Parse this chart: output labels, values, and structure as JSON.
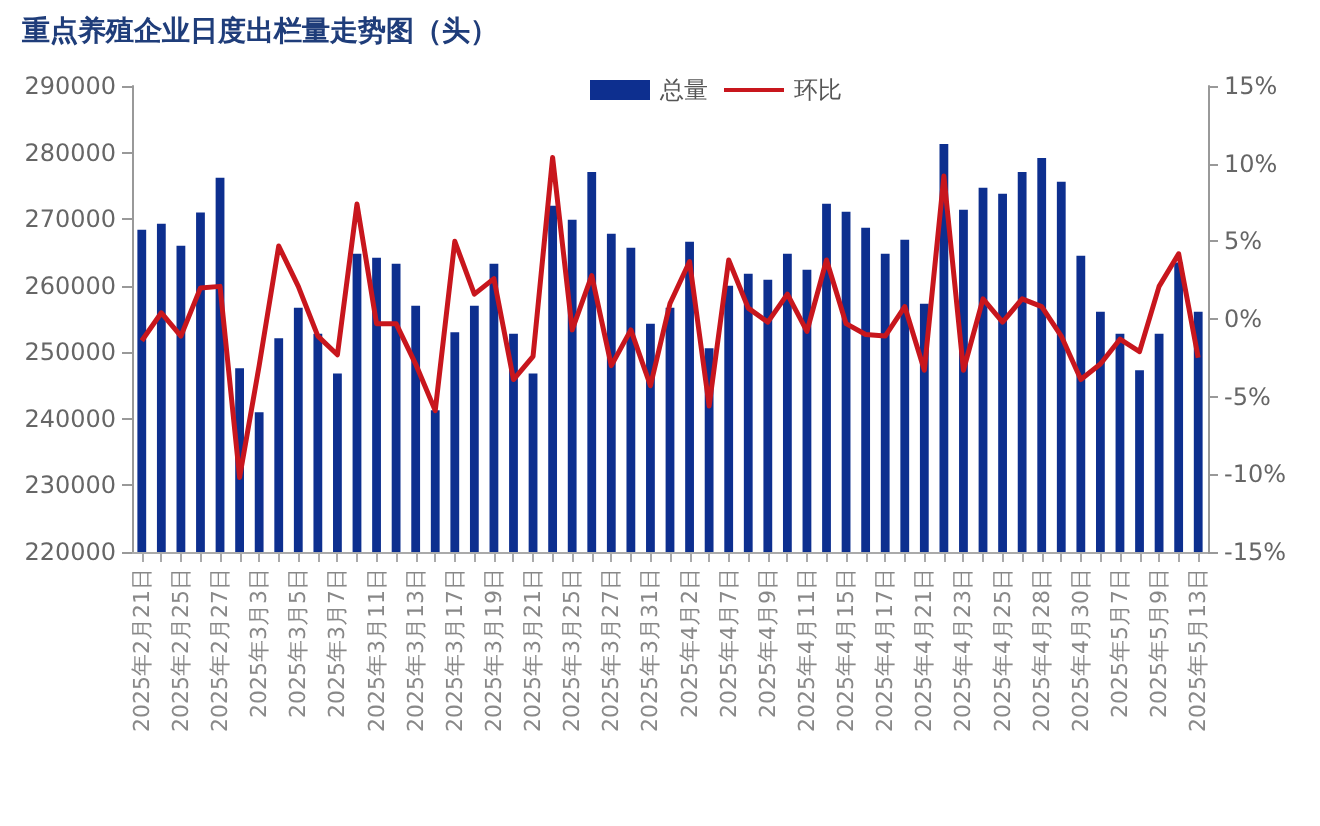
{
  "chart_data": {
    "type": "bar",
    "title": "重点养殖企业日度出栏量走势图（头）",
    "categories": [
      "2025年2月21日",
      null,
      "2025年2月25日",
      null,
      "2025年2月27日",
      null,
      "2025年3月3日",
      null,
      "2025年3月5日",
      null,
      "2025年3月7日",
      null,
      "2025年3月11日",
      null,
      "2025年3月13日",
      null,
      "2025年3月17日",
      null,
      "2025年3月19日",
      null,
      "2025年3月21日",
      null,
      "2025年3月25日",
      null,
      "2025年3月27日",
      null,
      "2025年3月31日",
      null,
      "2025年4月2日",
      null,
      "2025年4月7日",
      null,
      "2025年4月9日",
      null,
      "2025年4月11日",
      null,
      "2025年4月15日",
      null,
      "2025年4月17日",
      null,
      "2025年4月21日",
      null,
      "2025年4月23日",
      null,
      "2025年4月25日",
      null,
      "2025年4月28日",
      null,
      "2025年4月30日",
      null,
      "2025年5月7日",
      null,
      "2025年5月9日",
      null,
      "2025年5月13日"
    ],
    "series": [
      {
        "name": "总量",
        "color": "#0d2f8f",
        "values": [
          268400,
          269300,
          266000,
          271000,
          276200,
          247600,
          241000,
          252100,
          256700,
          252800,
          246800,
          264800,
          264200,
          263300,
          257000,
          241300,
          253000,
          257000,
          263300,
          252800,
          246800,
          272000,
          269900,
          277100,
          267800,
          265700,
          254300,
          256700,
          266600,
          250600,
          260000,
          261800,
          260900,
          264800,
          262400,
          272300,
          271100,
          268700,
          264800,
          266900,
          257300,
          281300,
          271400,
          274700,
          273800,
          277100,
          279200,
          275600,
          264500,
          256100,
          252800,
          247300,
          252800,
          263500,
          256100
        ]
      },
      {
        "name": "环比",
        "type": "line",
        "axis": "y2",
        "color": "#c8161d",
        "values": [
          -1.4,
          0.4,
          -1.1,
          2.0,
          2.1,
          -10.2,
          -3.0,
          4.7,
          2.1,
          -1.1,
          -2.3,
          7.4,
          -0.3,
          -0.3,
          -2.9,
          -5.9,
          5.0,
          1.6,
          2.6,
          -3.9,
          -2.4,
          10.4,
          -0.7,
          2.8,
          -3.0,
          -0.7,
          -4.3,
          1.0,
          3.7,
          -5.6,
          3.8,
          0.7,
          -0.2,
          1.6,
          -0.8,
          3.8,
          -0.3,
          -1.0,
          -1.1,
          0.8,
          -3.3,
          9.2,
          -3.3,
          1.3,
          -0.2,
          1.3,
          0.8,
          -1.1,
          -3.9,
          -2.9,
          -1.3,
          -2.1,
          2.1,
          4.2,
          -2.5
        ]
      }
    ],
    "ylim": [
      220000,
      290000
    ],
    "yticks": [
      220000,
      230000,
      240000,
      250000,
      260000,
      270000,
      280000,
      290000
    ],
    "y2lim": [
      -15,
      15
    ],
    "y2ticks": [
      {
        "value": -15,
        "label": "-15%"
      },
      {
        "value": -10,
        "label": "-10%"
      },
      {
        "value": -5,
        "label": "-5%"
      },
      {
        "value": 0,
        "label": "0%"
      },
      {
        "value": 5,
        "label": "5%"
      },
      {
        "value": 10,
        "label": "10%"
      },
      {
        "value": 15,
        "label": "15%"
      }
    ],
    "legend": "top",
    "grid": false,
    "marker": "none",
    "line_style": "solid"
  }
}
